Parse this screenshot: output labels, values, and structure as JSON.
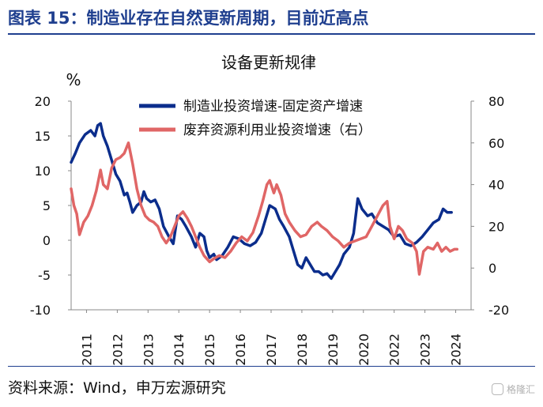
{
  "figure_title": "图表 15：制造业存在自然更新周期，目前近高点",
  "source_text": "资料来源：Wind，申万宏源研究",
  "watermark_text": "格隆汇",
  "colors": {
    "brand": "#1f3f8f",
    "series_navy": "#0b2d8c",
    "series_red": "#e06666"
  },
  "chart_data": {
    "type": "line",
    "title": "设备更新规律",
    "left_axis": {
      "unit_label": "%",
      "ticks": [
        20,
        15,
        10,
        5,
        0,
        -5,
        -10
      ],
      "range": [
        -10,
        20
      ]
    },
    "right_axis": {
      "ticks": [
        80,
        60,
        40,
        20,
        0,
        -20
      ],
      "range": [
        -20,
        80
      ]
    },
    "x_ticks": [
      "2011",
      "2012",
      "2013",
      "2014",
      "2015",
      "2016",
      "2017",
      "2018",
      "2019",
      "2020",
      "2022",
      "2023",
      "2024"
    ],
    "x_range": [
      2011.0,
      2025.3
    ],
    "grid": false,
    "legend_placement": "top-center",
    "series": [
      {
        "name": "制造业投资增速-固定资产增速",
        "axis": "left",
        "color": "#0b2d8c",
        "points": [
          [
            2011.0,
            11.2
          ],
          [
            2011.15,
            12.5
          ],
          [
            2011.3,
            14.0
          ],
          [
            2011.5,
            15.2
          ],
          [
            2011.7,
            15.8
          ],
          [
            2011.85,
            15.0
          ],
          [
            2011.95,
            16.5
          ],
          [
            2012.05,
            16.8
          ],
          [
            2012.15,
            15.0
          ],
          [
            2012.3,
            13.5
          ],
          [
            2012.45,
            11.5
          ],
          [
            2012.6,
            9.5
          ],
          [
            2012.75,
            8.5
          ],
          [
            2012.9,
            6.5
          ],
          [
            2013.0,
            6.8
          ],
          [
            2013.1,
            5.5
          ],
          [
            2013.2,
            4.0
          ],
          [
            2013.35,
            5.0
          ],
          [
            2013.5,
            5.5
          ],
          [
            2013.6,
            7.0
          ],
          [
            2013.7,
            6.0
          ],
          [
            2013.85,
            5.5
          ],
          [
            2014.0,
            5.8
          ],
          [
            2014.15,
            4.5
          ],
          [
            2014.3,
            2.0
          ],
          [
            2014.5,
            0.5
          ],
          [
            2014.65,
            -0.5
          ],
          [
            2014.8,
            3.5
          ],
          [
            2014.95,
            3.0
          ],
          [
            2015.1,
            2.0
          ],
          [
            2015.3,
            0.5
          ],
          [
            2015.45,
            -1.0
          ],
          [
            2015.6,
            1.0
          ],
          [
            2015.75,
            0.5
          ],
          [
            2015.85,
            -1.5
          ],
          [
            2015.95,
            -2.5
          ],
          [
            2016.1,
            -2.0
          ],
          [
            2016.2,
            -2.8
          ],
          [
            2016.4,
            -2.2
          ],
          [
            2016.6,
            -1.0
          ],
          [
            2016.8,
            0.5
          ],
          [
            2017.0,
            0.2
          ],
          [
            2017.2,
            -0.5
          ],
          [
            2017.4,
            -0.8
          ],
          [
            2017.6,
            -0.3
          ],
          [
            2017.8,
            1.0
          ],
          [
            2017.95,
            3.0
          ],
          [
            2018.1,
            5.0
          ],
          [
            2018.3,
            4.5
          ],
          [
            2018.45,
            3.0
          ],
          [
            2018.6,
            2.0
          ],
          [
            2018.8,
            0.5
          ],
          [
            2018.95,
            -1.5
          ],
          [
            2019.1,
            -3.5
          ],
          [
            2019.25,
            -4.0
          ],
          [
            2019.4,
            -2.5
          ],
          [
            2019.55,
            -3.5
          ],
          [
            2019.7,
            -4.5
          ],
          [
            2019.85,
            -4.5
          ],
          [
            2020.0,
            -5.0
          ],
          [
            2020.15,
            -4.8
          ],
          [
            2020.3,
            -5.5
          ],
          [
            2020.45,
            -4.5
          ],
          [
            2020.6,
            -3.5
          ],
          [
            2020.75,
            -2.0
          ],
          [
            2020.95,
            -1.0
          ],
          [
            2021.1,
            1.0
          ],
          [
            2021.25,
            6.0
          ],
          [
            2021.4,
            4.5
          ],
          [
            2021.6,
            3.5
          ],
          [
            2021.75,
            3.8
          ],
          [
            2021.95,
            2.5
          ],
          [
            2022.15,
            2.0
          ],
          [
            2022.35,
            1.5
          ],
          [
            2022.55,
            0.5
          ],
          [
            2022.75,
            0.8
          ],
          [
            2022.95,
            -0.5
          ],
          [
            2023.15,
            -0.8
          ],
          [
            2023.35,
            -0.3
          ],
          [
            2023.55,
            0.5
          ],
          [
            2023.75,
            1.5
          ],
          [
            2023.95,
            2.5
          ],
          [
            2024.15,
            3.0
          ],
          [
            2024.3,
            4.5
          ],
          [
            2024.45,
            4.0
          ],
          [
            2024.6,
            4.0
          ]
        ]
      },
      {
        "name": "废弃资源利用业投资增速（右）",
        "axis": "right",
        "color": "#e06666",
        "points": [
          [
            2011.0,
            38.0
          ],
          [
            2011.1,
            30.0
          ],
          [
            2011.2,
            26.0
          ],
          [
            2011.3,
            16.0
          ],
          [
            2011.45,
            22.0
          ],
          [
            2011.6,
            25.0
          ],
          [
            2011.75,
            30.0
          ],
          [
            2011.9,
            37.0
          ],
          [
            2012.05,
            47.0
          ],
          [
            2012.15,
            40.0
          ],
          [
            2012.3,
            38.0
          ],
          [
            2012.45,
            48.0
          ],
          [
            2012.6,
            52.0
          ],
          [
            2012.75,
            53.0
          ],
          [
            2012.9,
            55.0
          ],
          [
            2013.05,
            60.0
          ],
          [
            2013.2,
            50.0
          ],
          [
            2013.35,
            38.0
          ],
          [
            2013.5,
            30.0
          ],
          [
            2013.65,
            25.0
          ],
          [
            2013.8,
            23.0
          ],
          [
            2013.95,
            22.0
          ],
          [
            2014.1,
            20.0
          ],
          [
            2014.25,
            15.0
          ],
          [
            2014.4,
            12.0
          ],
          [
            2014.55,
            15.0
          ],
          [
            2014.7,
            20.0
          ],
          [
            2014.85,
            25.0
          ],
          [
            2015.0,
            27.0
          ],
          [
            2015.15,
            24.0
          ],
          [
            2015.3,
            20.0
          ],
          [
            2015.45,
            15.0
          ],
          [
            2015.6,
            10.0
          ],
          [
            2015.75,
            6.0
          ],
          [
            2015.95,
            3.0
          ],
          [
            2016.1,
            4.5
          ],
          [
            2016.3,
            6.0
          ],
          [
            2016.5,
            5.0
          ],
          [
            2016.7,
            8.0
          ],
          [
            2016.9,
            12.0
          ],
          [
            2017.1,
            15.0
          ],
          [
            2017.3,
            13.0
          ],
          [
            2017.5,
            17.0
          ],
          [
            2017.7,
            25.0
          ],
          [
            2017.85,
            32.0
          ],
          [
            2018.0,
            40.0
          ],
          [
            2018.1,
            42.0
          ],
          [
            2018.25,
            36.0
          ],
          [
            2018.35,
            40.0
          ],
          [
            2018.5,
            35.0
          ],
          [
            2018.65,
            26.0
          ],
          [
            2018.8,
            22.0
          ],
          [
            2019.0,
            18.0
          ],
          [
            2019.2,
            15.0
          ],
          [
            2019.4,
            16.0
          ],
          [
            2019.6,
            20.0
          ],
          [
            2019.8,
            22.0
          ],
          [
            2019.95,
            20.0
          ],
          [
            2020.15,
            18.0
          ],
          [
            2020.35,
            15.0
          ],
          [
            2020.55,
            13.0
          ],
          [
            2020.75,
            10.0
          ],
          [
            2020.95,
            12.0
          ],
          [
            2021.15,
            13.0
          ],
          [
            2021.35,
            14.0
          ],
          [
            2021.55,
            15.0
          ],
          [
            2021.75,
            20.0
          ],
          [
            2021.95,
            25.0
          ],
          [
            2022.15,
            30.0
          ],
          [
            2022.3,
            32.0
          ],
          [
            2022.4,
            20.0
          ],
          [
            2022.55,
            14.0
          ],
          [
            2022.7,
            20.0
          ],
          [
            2022.85,
            18.0
          ],
          [
            2023.0,
            14.0
          ],
          [
            2023.2,
            12.0
          ],
          [
            2023.35,
            8.0
          ],
          [
            2023.45,
            -3.0
          ],
          [
            2023.6,
            8.0
          ],
          [
            2023.75,
            10.0
          ],
          [
            2023.95,
            9.0
          ],
          [
            2024.1,
            12.0
          ],
          [
            2024.25,
            8.0
          ],
          [
            2024.4,
            10.0
          ],
          [
            2024.55,
            8.0
          ],
          [
            2024.7,
            9.0
          ],
          [
            2024.8,
            9.0
          ]
        ]
      }
    ]
  }
}
